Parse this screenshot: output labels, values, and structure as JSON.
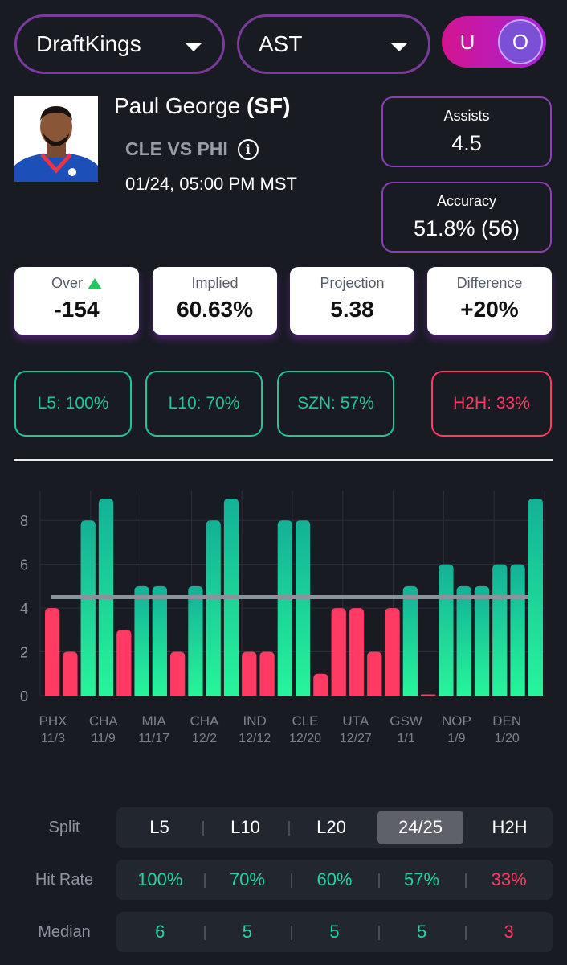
{
  "selectors": {
    "book": "DraftKings",
    "stat": "AST"
  },
  "toggle": {
    "under": "U",
    "over": "O",
    "selected": "O"
  },
  "player": {
    "name": "Paul George",
    "position": "(SF)",
    "matchup": "CLE VS PHI",
    "datetime": "01/24, 05:00 PM MST"
  },
  "stats": {
    "line_label": "Assists",
    "line_value": "4.5",
    "accuracy_label": "Accuracy",
    "accuracy_value": "51.8% (56)"
  },
  "cards": [
    {
      "label": "Over",
      "value": "-154"
    },
    {
      "label": "Implied",
      "value": "60.63%"
    },
    {
      "label": "Projection",
      "value": "5.38"
    },
    {
      "label": "Difference",
      "value": "+20%"
    }
  ],
  "pills": [
    {
      "label": "L5: 100%",
      "status": "good"
    },
    {
      "label": "L10: 70%",
      "status": "good"
    },
    {
      "label": "SZN: 57%",
      "status": "good"
    },
    {
      "label": "H2H: 33%",
      "status": "bad"
    }
  ],
  "chart_data": {
    "type": "bar",
    "line": 4.5,
    "ylim": [
      0,
      9
    ],
    "yticks": [
      "0",
      "2",
      "4",
      "6",
      "8"
    ],
    "values": [
      4,
      2,
      8,
      9,
      3,
      5,
      5,
      2,
      5,
      8,
      9,
      2,
      2,
      8,
      8,
      1,
      4,
      4,
      2,
      4,
      5,
      0,
      6,
      5,
      5,
      6,
      6,
      9
    ],
    "x_labels": [
      {
        "team": "PHX",
        "date": "11/3"
      },
      {
        "team": "CHA",
        "date": "11/9"
      },
      {
        "team": "MIA",
        "date": "11/17"
      },
      {
        "team": "CHA",
        "date": "12/2"
      },
      {
        "team": "IND",
        "date": "12/12"
      },
      {
        "team": "CLE",
        "date": "12/20"
      },
      {
        "team": "UTA",
        "date": "12/27"
      },
      {
        "team": "GSW",
        "date": "1/1"
      },
      {
        "team": "NOP",
        "date": "1/9"
      },
      {
        "team": "DEN",
        "date": "1/20"
      }
    ],
    "colors": {
      "hit": "#1fd9a0",
      "miss": "#ff3a63",
      "line": "#8a929c"
    }
  },
  "table": {
    "split": {
      "label": "Split",
      "cells": [
        "L5",
        "L10",
        "L20",
        "24/25",
        "H2H"
      ],
      "active": 3
    },
    "hit_rate": {
      "label": "Hit Rate",
      "cells": [
        "100%",
        "70%",
        "60%",
        "57%",
        "33%"
      ],
      "colors": [
        "green",
        "green",
        "green",
        "green",
        "red"
      ]
    },
    "median": {
      "label": "Median",
      "cells": [
        "6",
        "5",
        "5",
        "5",
        "3"
      ],
      "colors": [
        "green",
        "green",
        "green",
        "green",
        "red"
      ]
    }
  }
}
